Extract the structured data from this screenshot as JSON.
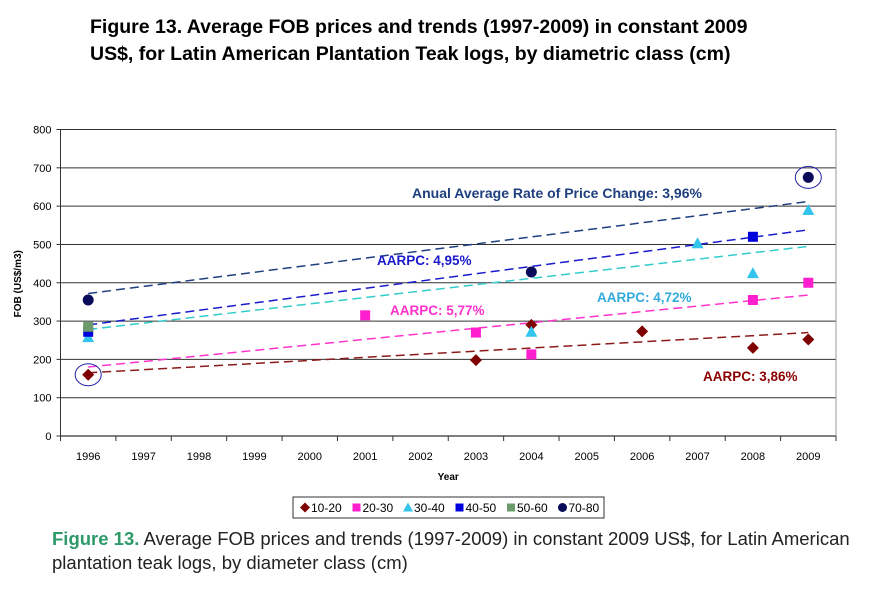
{
  "title": "Figure 13. Average FOB prices and trends (1997-2009) in constant 2009 US$, for Latin American Plantation Teak logs, by diametric class (cm)",
  "caption": {
    "label": "Figure 13.",
    "text": " Average FOB prices and trends (1997-2009) in constant 2009 US$, for Latin American plantation teak logs, by diameter class (cm)",
    "label_color": "#2e9a6a"
  },
  "chart_data": {
    "type": "scatter",
    "xlabel": "Year",
    "ylabel": "FOB (US$/m3)",
    "categories": [
      "1996",
      "1997",
      "1998",
      "1999",
      "2000",
      "2001",
      "2002",
      "2003",
      "2004",
      "2005",
      "2006",
      "2007",
      "2008",
      "2009"
    ],
    "ylim": [
      0,
      800
    ],
    "yticks": [
      0,
      100,
      200,
      300,
      400,
      500,
      600,
      700,
      800
    ],
    "grid": true,
    "legend_placement": "bottom",
    "series": [
      {
        "name": "10-20",
        "marker": "diamond",
        "color": "#7f0000",
        "trend_color": "#8b1a1a",
        "points": [
          [
            "1996",
            160
          ],
          [
            "2003",
            198
          ],
          [
            "2004",
            290
          ],
          [
            "2006",
            273
          ],
          [
            "2008",
            230
          ],
          [
            "2009",
            252
          ]
        ],
        "trend": [
          165,
          270
        ]
      },
      {
        "name": "20-30",
        "marker": "square",
        "color": "#ff1fcf",
        "trend_color": "#ff33cc",
        "points": [
          [
            "2001",
            315
          ],
          [
            "2003",
            270
          ],
          [
            "2004",
            213
          ],
          [
            "2008",
            355
          ],
          [
            "2009",
            400
          ]
        ],
        "trend": [
          180,
          368
        ]
      },
      {
        "name": "30-40",
        "marker": "triangle",
        "color": "#33c4ee",
        "trend_color": "#33cccc",
        "points": [
          [
            "1996",
            258
          ],
          [
            "2004",
            272
          ],
          [
            "2007",
            503
          ],
          [
            "2008",
            425
          ],
          [
            "2009",
            590
          ]
        ],
        "trend": [
          278,
          495
        ]
      },
      {
        "name": "40-50",
        "marker": "square",
        "color": "#0000dd",
        "trend_color": "#1a1acc",
        "points": [
          [
            "1996",
            272
          ],
          [
            "2008",
            520
          ]
        ],
        "trend": [
          290,
          538
        ]
      },
      {
        "name": "50-60",
        "marker": "square",
        "color": "#6b9a6b",
        "trend_color": null,
        "points": [
          [
            "1996",
            285
          ]
        ],
        "trend": null
      },
      {
        "name": "70-80",
        "marker": "circle",
        "color": "#0a0a5a",
        "trend_color": "#1f3f7f",
        "points": [
          [
            "1996",
            355
          ],
          [
            "2004",
            428
          ],
          [
            "2009",
            675
          ]
        ],
        "trend": [
          372,
          612
        ]
      }
    ],
    "annotations": [
      {
        "text": "Anual Average Rate of Price Change: 3,96%",
        "color": "#1f3f7f"
      },
      {
        "text": "AARPC: 4,95%",
        "color": "#1a1acc"
      },
      {
        "text": "AARPC: 5,77%",
        "color": "#ff33cc"
      },
      {
        "text": "AARPC:  4,72%",
        "color": "#33aadd"
      },
      {
        "text": "AARPC: 3,86%",
        "color": "#8b0000"
      }
    ],
    "highlighted_points": [
      [
        "10-20",
        "1996"
      ],
      [
        "70-80",
        "2009"
      ]
    ]
  }
}
